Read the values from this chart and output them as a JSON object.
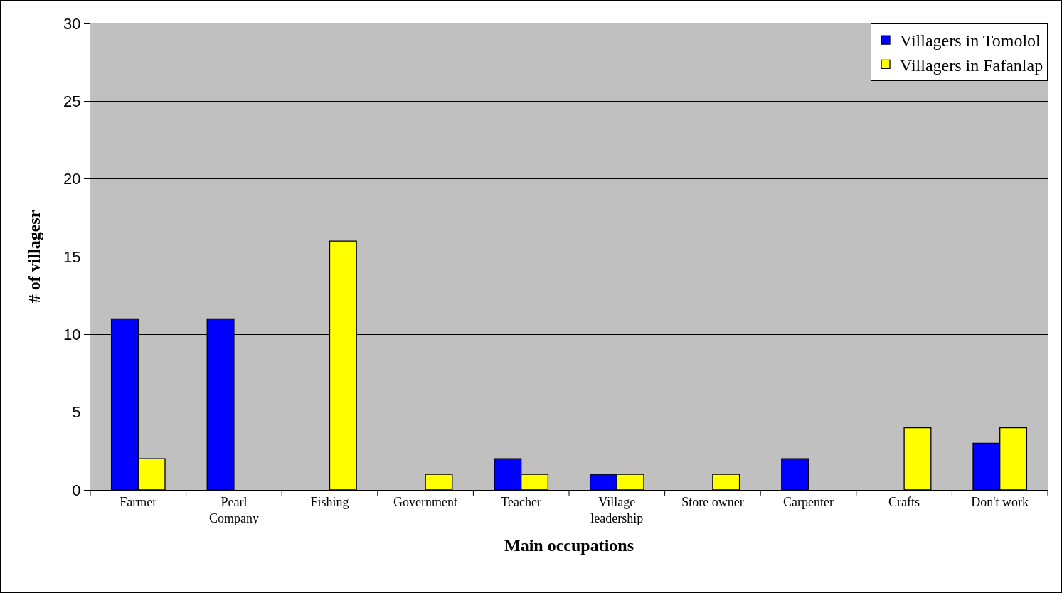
{
  "chart_data": {
    "type": "bar",
    "xlabel": "Main occupations",
    "ylabel": "# of villagesr",
    "categories": [
      "Farmer",
      "Pearl\nCompany",
      "Fishing",
      "Government",
      "Teacher",
      "Village\nleadership",
      "Store owner",
      "Carpenter",
      "Crafts",
      "Don't work"
    ],
    "series": [
      {
        "name": "Villagers in Tomolol",
        "color": "#0000ff",
        "values": [
          11,
          11,
          null,
          null,
          2,
          1,
          null,
          2,
          null,
          3
        ]
      },
      {
        "name": "Villagers in Fafanlap",
        "color": "#ffff00",
        "values": [
          2,
          null,
          16,
          1,
          1,
          1,
          1,
          null,
          4,
          4
        ]
      }
    ],
    "ylim": [
      0,
      30
    ],
    "yticks": [
      0,
      5,
      10,
      15,
      20,
      25,
      30
    ],
    "grid": "y",
    "legend": "top right"
  }
}
